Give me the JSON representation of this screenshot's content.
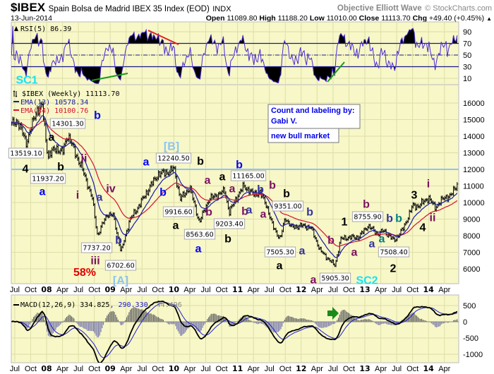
{
  "header": {
    "symbol": "$IBEX",
    "name": "Spain Bolsa de Madrid IBEX 35 Index (EOD)",
    "exchange": "INDX",
    "brand": "Objective Elliott Wave",
    "copyright": "© StockCharts.com",
    "date": "13-Jun-2014",
    "open_label": "Open",
    "open": "11089.80",
    "high_label": "High",
    "high": "11188.20",
    "low_label": "Low",
    "low": "11010.00",
    "close_label": "Close",
    "close": "11113.70",
    "chg_label": "Chg",
    "chg": "+49.40 (+0.45%)",
    "chg_arrow": "▲"
  },
  "rsi_legend": "RSI(5) 86.39",
  "main_legend": {
    "price": "$IBEX (Weekly) 11113.70",
    "ema13": "EMA(13) 10578.34",
    "ema34": "EMA(34) 10100.76"
  },
  "macd_legend": {
    "name": "MACD(12,26,9) 334.825",
    "signal": ", 290.330",
    "hist": ", 44.496"
  },
  "notes": {
    "line1": "Count and labeling by:",
    "line2": "Gabi V.",
    "line3": "new bull market"
  },
  "colors": {
    "panel_bg": "#f7f7c8",
    "grid": "#dedea8",
    "ema13": "#1a1aa6",
    "ema34": "#d8102e",
    "rsi_line": "#4b2bd6",
    "resistance": "#8fc4f0",
    "black": "#000000",
    "blue": "#0000ff",
    "slate": "#33339e",
    "purple": "#7a1060",
    "teal": "#008080",
    "lightblue": "#8cc4f2",
    "cyan": "#12e4f4",
    "red": "#e00000"
  },
  "chart_data": {
    "type": "ohlc",
    "title": "$IBEX Spain Bolsa de Madrid IBEX 35 Index (EOD) weekly",
    "x_range": [
      "2007-06",
      "2014-06-13"
    ],
    "x_tick_labels": [
      "Jul",
      "Oct",
      "08",
      "Apr",
      "Jul",
      "Oct",
      "09",
      "Apr",
      "Jul",
      "Oct",
      "10",
      "Apr",
      "Jul",
      "Oct",
      "11",
      "Apr",
      "Jul",
      "Oct",
      "12",
      "Apr",
      "Jul",
      "Oct",
      "13",
      "Apr",
      "Jul",
      "Oct",
      "14",
      "Apr"
    ],
    "price_axis": {
      "ylim": [
        5200,
        16800
      ],
      "ticks": [
        "16000",
        "15000",
        "14000",
        "13000",
        "12000",
        "11000",
        "10000",
        "9000",
        "8000",
        "7000",
        "6000"
      ]
    },
    "rsi_axis": {
      "ylim": [
        0,
        100
      ],
      "ticks": [
        "90",
        "70",
        "50",
        "30",
        "10"
      ],
      "levels": [
        70,
        50,
        30
      ]
    },
    "macd_axis": {
      "ylim": [
        -1250,
        800
      ],
      "ticks": [
        "500",
        "0",
        "-500",
        "-1000"
      ]
    },
    "resistance_level": 12000,
    "price_anchors": [
      [
        2007.45,
        14700
      ],
      [
        2007.55,
        14900
      ],
      [
        2007.68,
        13600
      ],
      [
        2007.85,
        15600
      ],
      [
        2007.93,
        15800
      ],
      [
        2008.02,
        12800
      ],
      [
        2008.15,
        13300
      ],
      [
        2008.25,
        13000
      ],
      [
        2008.33,
        14100
      ],
      [
        2008.55,
        12100
      ],
      [
        2008.62,
        11400
      ],
      [
        2008.72,
        10200
      ],
      [
        2008.8,
        8000
      ],
      [
        2008.95,
        9300
      ],
      [
        2009.05,
        9200
      ],
      [
        2009.17,
        7000
      ],
      [
        2009.3,
        8900
      ],
      [
        2009.45,
        9800
      ],
      [
        2009.6,
        10800
      ],
      [
        2009.75,
        11700
      ],
      [
        2009.95,
        11900
      ],
      [
        2010.0,
        12100
      ],
      [
        2010.1,
        10200
      ],
      [
        2010.25,
        10900
      ],
      [
        2010.4,
        8800
      ],
      [
        2010.55,
        10200
      ],
      [
        2010.7,
        10500
      ],
      [
        2010.8,
        10700
      ],
      [
        2010.87,
        9400
      ],
      [
        2011.0,
        10400
      ],
      [
        2011.1,
        11000
      ],
      [
        2011.25,
        10500
      ],
      [
        2011.35,
        10600
      ],
      [
        2011.45,
        9900
      ],
      [
        2011.55,
        8600
      ],
      [
        2011.67,
        7800
      ],
      [
        2011.75,
        9100
      ],
      [
        2011.85,
        8500
      ],
      [
        2012.0,
        8600
      ],
      [
        2012.15,
        8500
      ],
      [
        2012.3,
        7100
      ],
      [
        2012.4,
        6700
      ],
      [
        2012.53,
        6200
      ],
      [
        2012.62,
        7800
      ],
      [
        2012.75,
        7900
      ],
      [
        2012.9,
        7900
      ],
      [
        2013.05,
        8600
      ],
      [
        2013.2,
        8100
      ],
      [
        2013.3,
        8300
      ],
      [
        2013.46,
        7700
      ],
      [
        2013.6,
        8400
      ],
      [
        2013.75,
        9800
      ],
      [
        2013.85,
        9800
      ],
      [
        2014.0,
        10300
      ],
      [
        2014.1,
        9700
      ],
      [
        2014.25,
        10300
      ],
      [
        2014.35,
        10400
      ],
      [
        2014.45,
        11113.7
      ]
    ],
    "price_labels": [
      "13519.10",
      "11937.20",
      "14301.30",
      "7737.20",
      "6702.60",
      "12240.50",
      "9916.60",
      "8563.60",
      "9203.40",
      "11165.00",
      "9351.00",
      "7505.30",
      "5905.30",
      "8755.90",
      "7508.40"
    ],
    "wave_labels": [
      {
        "text": "4",
        "color": "black"
      },
      {
        "text": "a",
        "color": "black"
      },
      {
        "text": "b",
        "color": "blue"
      },
      {
        "text": "b",
        "color": "black"
      },
      {
        "text": "a",
        "color": "blue"
      },
      {
        "text": "ii",
        "color": "purple"
      },
      {
        "text": "i",
        "color": "purple"
      },
      {
        "text": "iv",
        "color": "purple"
      },
      {
        "text": "a",
        "color": "slate"
      },
      {
        "text": "b",
        "color": "slate"
      },
      {
        "text": "iii",
        "color": "purple"
      },
      {
        "text": "58%",
        "color": "red"
      },
      {
        "text": "[A]",
        "color": "lightblue"
      },
      {
        "text": "[B]",
        "color": "lightblue"
      },
      {
        "text": "a",
        "color": "blue"
      },
      {
        "text": "b",
        "color": "black"
      },
      {
        "text": "b",
        "color": "blue"
      },
      {
        "text": "a",
        "color": "black"
      },
      {
        "text": "a",
        "color": "blue"
      },
      {
        "text": "a",
        "color": "purple"
      },
      {
        "text": "a",
        "color": "black"
      },
      {
        "text": "b",
        "color": "purple"
      },
      {
        "text": "a",
        "color": "purple"
      },
      {
        "text": "b",
        "color": "purple"
      },
      {
        "text": "b",
        "color": "black"
      },
      {
        "text": "b",
        "color": "blue"
      },
      {
        "text": "b",
        "color": "slate"
      },
      {
        "text": "b",
        "color": "purple"
      },
      {
        "text": "a",
        "color": "slate"
      },
      {
        "text": "a",
        "color": "purple"
      },
      {
        "text": "b",
        "color": "black"
      },
      {
        "text": "b",
        "color": "slate"
      },
      {
        "text": "a",
        "color": "slate"
      },
      {
        "text": "a",
        "color": "black"
      },
      {
        "text": "b",
        "color": "purple"
      },
      {
        "text": "a",
        "color": "purple"
      },
      {
        "text": "SC2",
        "color": "cyan"
      },
      {
        "text": "1",
        "color": "black"
      },
      {
        "text": "a",
        "color": "purple"
      },
      {
        "text": "b",
        "color": "purple"
      },
      {
        "text": "b",
        "color": "slate"
      },
      {
        "text": "b",
        "color": "teal"
      },
      {
        "text": "a",
        "color": "slate"
      },
      {
        "text": "a",
        "color": "teal"
      },
      {
        "text": "2",
        "color": "black"
      },
      {
        "text": "3",
        "color": "black"
      },
      {
        "text": "i",
        "color": "purple"
      },
      {
        "text": "4",
        "color": "black"
      },
      {
        "text": "ii",
        "color": "purple"
      },
      {
        "text": "SC1",
        "color": "cyan"
      }
    ]
  }
}
